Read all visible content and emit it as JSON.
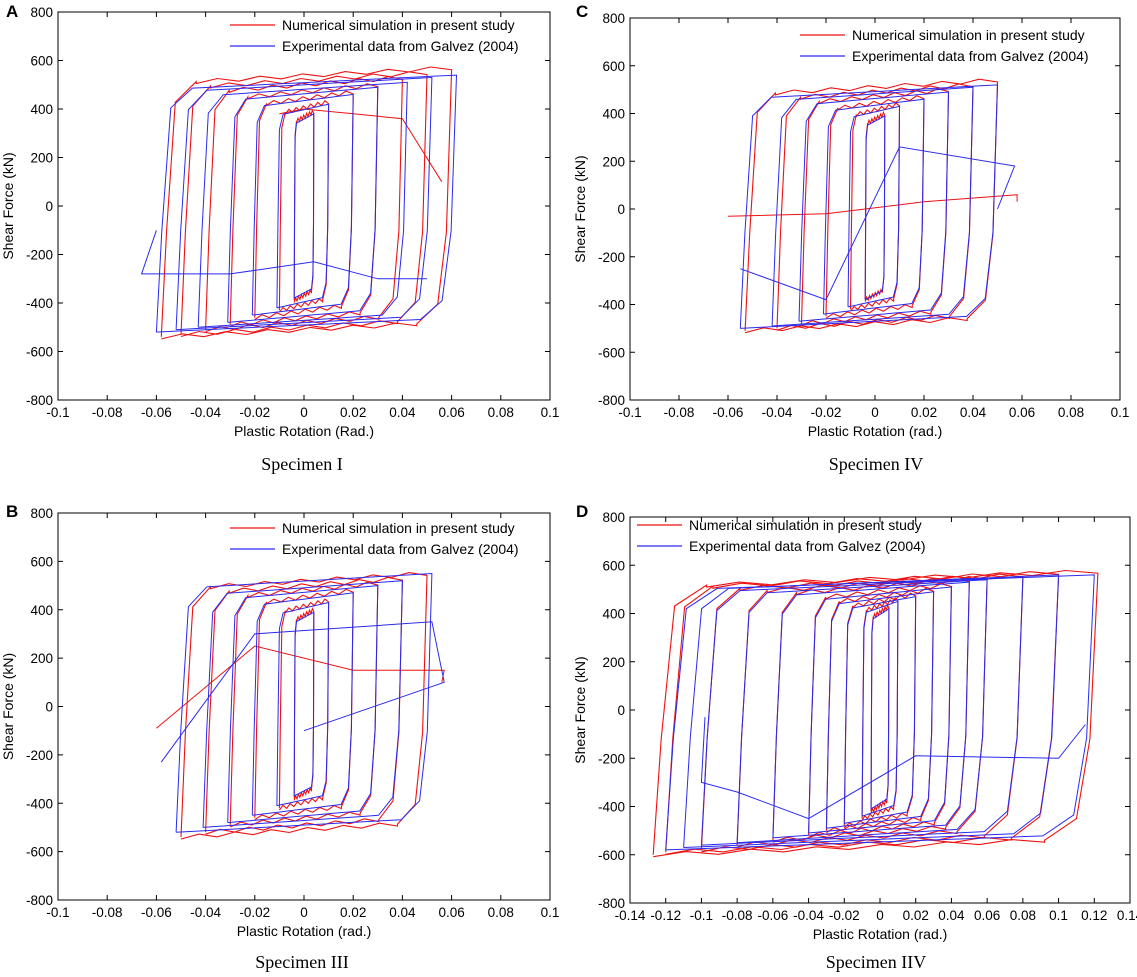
{
  "colors": {
    "simulation": "#ee1111",
    "experiment": "#2a2af0",
    "axis": "#000000"
  },
  "chart_data": [
    {
      "panel": "A",
      "caption": "Specimen I",
      "type": "line",
      "xlabel": "Plastic Rotation (Rad.)",
      "ylabel": "Shear Force (kN)",
      "xlim": [
        -0.1,
        0.1
      ],
      "ylim": [
        -800,
        800
      ],
      "xticks": [
        -0.1,
        -0.08,
        -0.06,
        -0.04,
        -0.02,
        0,
        0.02,
        0.04,
        0.06,
        0.08,
        0.1
      ],
      "xtick_labels": [
        "-0.1",
        "-0.08",
        "-0.06",
        "-0.04",
        "-0.02",
        "0",
        "0.02",
        "0.04",
        "0.06",
        "0.08",
        "0.1"
      ],
      "yticks": [
        -800,
        -600,
        -400,
        -200,
        0,
        200,
        400,
        600,
        800
      ],
      "ytick_labels": [
        "-800",
        "-600",
        "-400",
        "-200",
        "0",
        "200",
        "400",
        "600",
        "800"
      ],
      "legend": [
        "Numerical simulation in present study",
        "Experimental data from Galvez (2004)"
      ],
      "legend_position": "top-right",
      "series": [
        {
          "name": "Numerical simulation in present study",
          "style": "simulation",
          "loop_amplitudes": [
            0.004,
            0.01,
            0.02,
            0.03,
            0.04,
            0.05,
            0.06
          ],
          "neg_reach": [
            -0.004,
            -0.01,
            -0.02,
            -0.03,
            -0.04,
            -0.05,
            -0.058
          ],
          "peak_pos": [
            390,
            430,
            470,
            500,
            530,
            550,
            570
          ],
          "peak_neg": [
            -390,
            -430,
            -460,
            -490,
            -510,
            -530,
            -540
          ],
          "extra": [
            [
              -0.01,
              380
            ],
            [
              0.0,
              400
            ],
            [
              0.02,
              380
            ],
            [
              0.04,
              360
            ],
            [
              0.056,
              100
            ]
          ]
        },
        {
          "name": "Experimental data from Galvez (2004)",
          "style": "experiment",
          "loop_amplitudes": [
            0.004,
            0.01,
            0.02,
            0.03,
            0.042,
            0.052,
            0.062
          ],
          "neg_reach": [
            -0.004,
            -0.011,
            -0.021,
            -0.031,
            -0.043,
            -0.052,
            -0.06
          ],
          "peak_pos": [
            380,
            420,
            460,
            490,
            510,
            530,
            540
          ],
          "peak_neg": [
            -380,
            -420,
            -450,
            -480,
            -500,
            -510,
            -520
          ],
          "extra": [
            [
              -0.06,
              -100
            ],
            [
              -0.066,
              -280
            ],
            [
              -0.03,
              -280
            ],
            [
              0.004,
              -230
            ],
            [
              0.03,
              -300
            ],
            [
              0.05,
              -300
            ]
          ]
        }
      ]
    },
    {
      "panel": "C",
      "caption": "Specimen IV",
      "type": "line",
      "xlabel": "Plastic Rotation (rad.)",
      "ylabel": "Shear Force (kN)",
      "xlim": [
        -0.1,
        0.1
      ],
      "ylim": [
        -800,
        800
      ],
      "xticks": [
        -0.1,
        -0.08,
        -0.06,
        -0.04,
        -0.02,
        0,
        0.02,
        0.04,
        0.06,
        0.08,
        0.1
      ],
      "xtick_labels": [
        "-0.1",
        "-0.08",
        "-0.06",
        "-0.04",
        "-0.02",
        "0",
        "0.02",
        "0.04",
        "0.06",
        "0.08",
        "0.1"
      ],
      "yticks": [
        -800,
        -600,
        -400,
        -200,
        0,
        200,
        400,
        600,
        800
      ],
      "ytick_labels": [
        "-800",
        "-600",
        "-400",
        "-200",
        "0",
        "200",
        "400",
        "600",
        "800"
      ],
      "legend": [
        "Numerical simulation in present study",
        "Experimental data from Galvez (2004)"
      ],
      "legend_position": "top-right",
      "series": [
        {
          "name": "Numerical simulation in present study",
          "style": "simulation",
          "loop_amplitudes": [
            0.004,
            0.01,
            0.02,
            0.03,
            0.04,
            0.05
          ],
          "neg_reach": [
            -0.004,
            -0.01,
            -0.02,
            -0.03,
            -0.04,
            -0.053
          ],
          "peak_pos": [
            400,
            440,
            470,
            500,
            520,
            540
          ],
          "peak_neg": [
            -380,
            -420,
            -450,
            -480,
            -500,
            -510
          ],
          "extra": [
            [
              -0.06,
              -30
            ],
            [
              -0.02,
              -20
            ],
            [
              0.02,
              30
            ],
            [
              0.058,
              60
            ],
            [
              0.058,
              30
            ]
          ]
        },
        {
          "name": "Experimental data from Galvez (2004)",
          "style": "experiment",
          "loop_amplitudes": [
            0.004,
            0.01,
            0.02,
            0.03,
            0.04,
            0.05
          ],
          "neg_reach": [
            -0.004,
            -0.011,
            -0.021,
            -0.031,
            -0.042,
            -0.055
          ],
          "peak_pos": [
            390,
            430,
            460,
            490,
            510,
            520
          ],
          "peak_neg": [
            -380,
            -410,
            -440,
            -470,
            -490,
            -500
          ],
          "extra": [
            [
              -0.055,
              -250
            ],
            [
              -0.02,
              -380
            ],
            [
              0.01,
              260
            ],
            [
              0.057,
              180
            ],
            [
              0.05,
              0
            ]
          ]
        }
      ]
    },
    {
      "panel": "B",
      "caption": "Specimen III",
      "type": "line",
      "xlabel": "Plastic Rotation (rad.)",
      "ylabel": "Shear Force (kN)",
      "xlim": [
        -0.1,
        0.1
      ],
      "ylim": [
        -800,
        800
      ],
      "xticks": [
        -0.1,
        -0.08,
        -0.06,
        -0.04,
        -0.02,
        0,
        0.02,
        0.04,
        0.06,
        0.08,
        0.1
      ],
      "xtick_labels": [
        "-0.1",
        "-0.08",
        "-0.06",
        "-0.04",
        "-0.02",
        "0",
        "0.02",
        "0.04",
        "0.06",
        "0.08",
        "0.1"
      ],
      "yticks": [
        -800,
        -600,
        -400,
        -200,
        0,
        200,
        400,
        600,
        800
      ],
      "ytick_labels": [
        "-800",
        "-600",
        "-400",
        "-200",
        "0",
        "200",
        "400",
        "600",
        "800"
      ],
      "legend": [
        "Numerical simulation in present study",
        "Experimental data from Galvez (2004)"
      ],
      "legend_position": "top-right",
      "series": [
        {
          "name": "Numerical simulation in present study",
          "style": "simulation",
          "loop_amplitudes": [
            0.004,
            0.01,
            0.02,
            0.03,
            0.04,
            0.05
          ],
          "neg_reach": [
            -0.004,
            -0.01,
            -0.02,
            -0.03,
            -0.04,
            -0.05
          ],
          "peak_pos": [
            400,
            440,
            480,
            510,
            530,
            550
          ],
          "peak_neg": [
            -380,
            -420,
            -460,
            -490,
            -520,
            -540
          ],
          "extra": [
            [
              -0.06,
              -90
            ],
            [
              -0.02,
              250
            ],
            [
              0.02,
              150
            ],
            [
              0.057,
              150
            ],
            [
              0.056,
              100
            ]
          ]
        },
        {
          "name": "Experimental data from Galvez (2004)",
          "style": "experiment",
          "loop_amplitudes": [
            0.004,
            0.01,
            0.02,
            0.03,
            0.04,
            0.052
          ],
          "neg_reach": [
            -0.004,
            -0.011,
            -0.021,
            -0.031,
            -0.041,
            -0.052
          ],
          "peak_pos": [
            390,
            430,
            470,
            500,
            520,
            550
          ],
          "peak_neg": [
            -370,
            -410,
            -450,
            -480,
            -500,
            -520
          ],
          "extra": [
            [
              -0.058,
              -230
            ],
            [
              -0.02,
              300
            ],
            [
              0.052,
              350
            ],
            [
              0.057,
              100
            ],
            [
              0.0,
              -100
            ]
          ]
        }
      ]
    },
    {
      "panel": "D",
      "caption": "Specimen IIV",
      "type": "line",
      "xlabel": "Plastic Rotation (rad.)",
      "ylabel": "Shear Force (kN)",
      "xlim": [
        -0.14,
        0.14
      ],
      "ylim": [
        -800,
        800
      ],
      "xticks": [
        -0.14,
        -0.12,
        -0.1,
        -0.08,
        -0.06,
        -0.04,
        -0.02,
        0,
        0.02,
        0.04,
        0.06,
        0.08,
        0.1,
        0.12,
        0.14
      ],
      "xtick_labels": [
        "-0.14",
        "-0.12",
        "-0.1",
        "-0.08",
        "-0.06",
        "-0.04",
        "-0.02",
        "0",
        "0.02",
        "0.04",
        "0.06",
        "0.08",
        "0.1",
        "0.12",
        "0.14"
      ],
      "yticks": [
        -800,
        -600,
        -400,
        -200,
        0,
        200,
        400,
        600,
        800
      ],
      "ytick_labels": [
        "-800",
        "-600",
        "-400",
        "-200",
        "0",
        "200",
        "400",
        "600",
        "800"
      ],
      "legend": [
        "Numerical simulation in present study",
        "Experimental data from Galvez (2004)"
      ],
      "legend_position": "top-left",
      "series": [
        {
          "name": "Numerical simulation in present study",
          "style": "simulation",
          "loop_amplitudes": [
            0.005,
            0.01,
            0.02,
            0.03,
            0.04,
            0.05,
            0.06,
            0.08,
            0.1,
            0.122
          ],
          "neg_reach": [
            -0.005,
            -0.01,
            -0.02,
            -0.03,
            -0.04,
            -0.06,
            -0.08,
            -0.1,
            -0.12,
            -0.127
          ],
          "peak_pos": [
            430,
            460,
            480,
            500,
            520,
            540,
            550,
            560,
            570,
            575
          ],
          "peak_neg": [
            -420,
            -450,
            -480,
            -500,
            -520,
            -540,
            -560,
            -580,
            -590,
            -600
          ],
          "extra": []
        },
        {
          "name": "Experimental data from Galvez (2004)",
          "style": "experiment",
          "loop_amplitudes": [
            0.005,
            0.01,
            0.02,
            0.03,
            0.04,
            0.05,
            0.06,
            0.08,
            0.1,
            0.12
          ],
          "neg_reach": [
            -0.005,
            -0.01,
            -0.02,
            -0.03,
            -0.04,
            -0.06,
            -0.08,
            -0.1,
            -0.11,
            -0.12
          ],
          "peak_pos": [
            420,
            450,
            470,
            490,
            510,
            530,
            540,
            550,
            560,
            560
          ],
          "peak_neg": [
            -410,
            -440,
            -470,
            -490,
            -510,
            -530,
            -550,
            -560,
            -570,
            -580
          ],
          "extra": [
            [
              -0.098,
              -30
            ],
            [
              -0.1,
              -300
            ],
            [
              -0.08,
              -340
            ],
            [
              -0.04,
              -450
            ],
            [
              0.02,
              -190
            ],
            [
              0.1,
              -200
            ],
            [
              0.115,
              -60
            ]
          ]
        }
      ]
    }
  ]
}
